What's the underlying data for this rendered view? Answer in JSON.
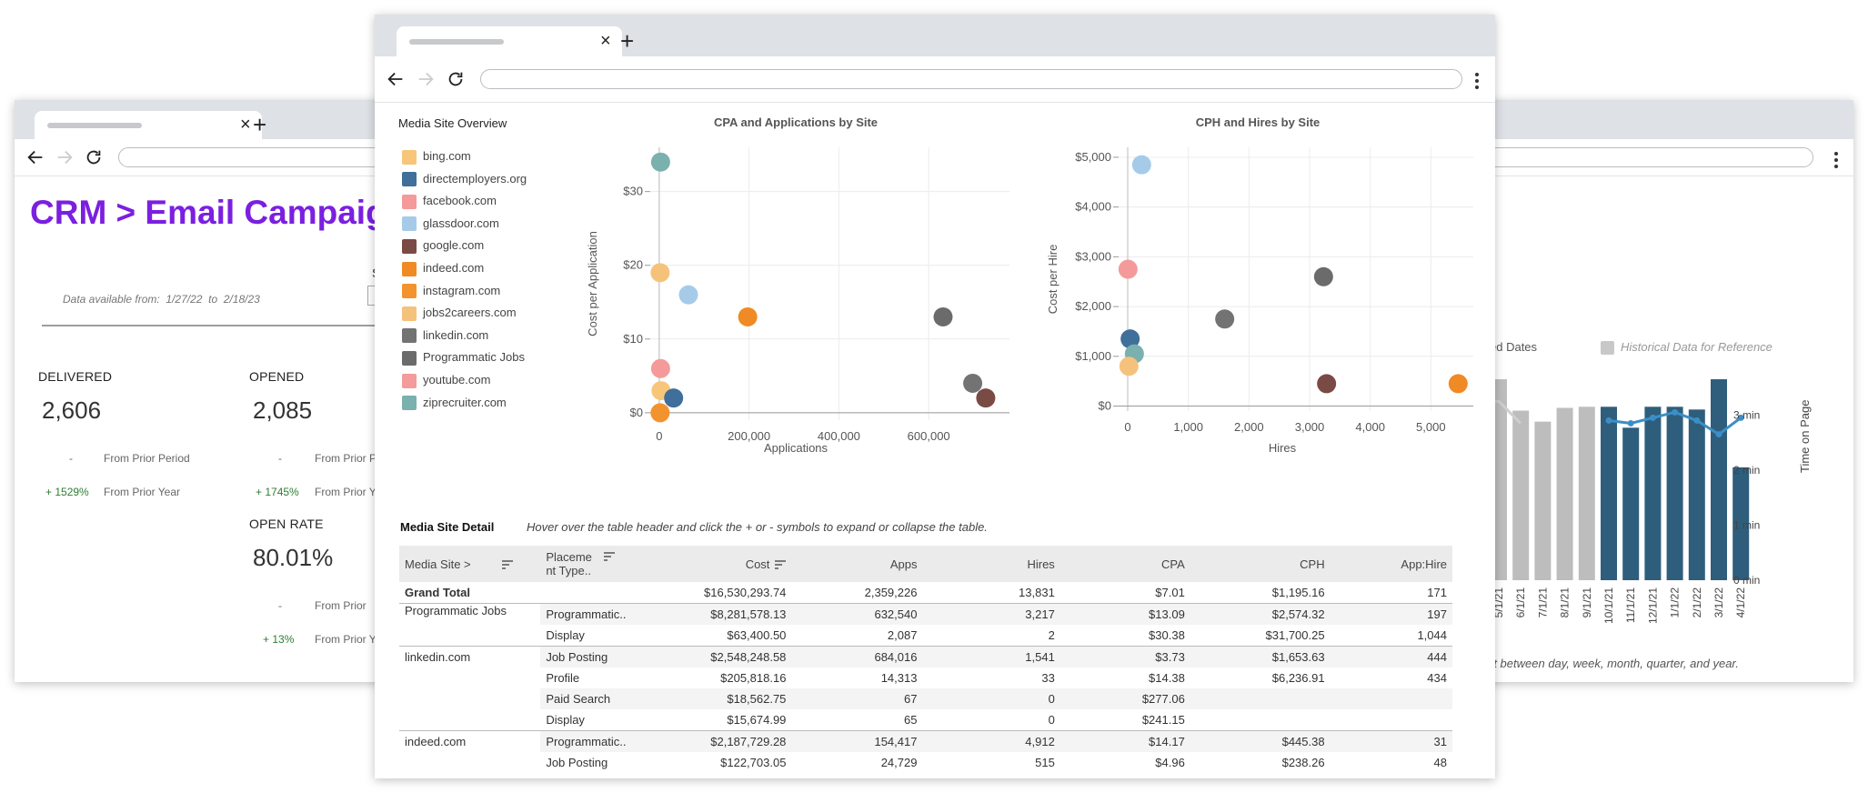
{
  "left_window": {
    "title": "CRM > Email Campaig",
    "data_range": {
      "prefix": "Data available from:",
      "from": "1/27/22",
      "to_word": "to",
      "to": "2/18/23"
    },
    "metrics": [
      {
        "label": "DELIVERED",
        "value": "2,606",
        "prior_period_change": "-",
        "prior_period_label": "From Prior Period",
        "prior_year_change": "+ 1529%",
        "prior_year_label": "From Prior Year"
      },
      {
        "label": "OPENED",
        "value": "2,085",
        "prior_period_change": "-",
        "prior_period_label": "From Prior P",
        "prior_year_change": "+ 1745%",
        "prior_year_label": "From Prior Y"
      },
      {
        "label": "OPEN RATE",
        "value": "80.01%",
        "prior_period_change": "-",
        "prior_period_label": "From Prior",
        "prior_year_change": "+ 13%",
        "prior_year_label": "From Prior Y"
      }
    ],
    "cut_letter": "S"
  },
  "right_window": {
    "legend": [
      {
        "label": "ed Dates",
        "color": "#cccccc"
      },
      {
        "label": "Historical Data for Reference",
        "color": "#c8c8c8"
      }
    ],
    "right_axis_title": "Time on Page",
    "right_axis_ticks": [
      "3 min",
      "2 min",
      "1 min",
      "0 min"
    ],
    "footnote": "rt between day, week, month, quarter, and year.",
    "chart_data": {
      "type": "bar",
      "categories": [
        "",
        "5/1/21",
        "6/1/21",
        "7/1/21",
        "8/1/21",
        "9/1/21",
        "10/1/21",
        "11/1/21",
        "12/1/21",
        "1/1/22",
        "2/1/22",
        "3/1/22",
        "4/1/22"
      ],
      "series": [
        {
          "values": [
            3.65,
            3.65,
            3.08,
            2.88,
            3.13,
            3.15,
            3.15,
            2.77,
            3.15,
            3.15,
            3.1,
            3.65,
            2.05
          ]
        },
        {
          "values": [
            null,
            null,
            null,
            null,
            null,
            null,
            2.9,
            2.85,
            2.95,
            3.05,
            2.9,
            2.65,
            2.95
          ]
        }
      ],
      "highlight_start_index": 6,
      "colors": {
        "historical": "#bdbdbd",
        "current": "#2e5e7c",
        "line": "#3b8fc6"
      },
      "ylim": [
        0,
        3.7
      ]
    }
  },
  "center_window": {
    "overview_title": "Media Site Overview",
    "sites": [
      {
        "name": "bing.com",
        "color": "#f7c67a"
      },
      {
        "name": "directemployers.org",
        "color": "#3f6f9a"
      },
      {
        "name": "facebook.com",
        "color": "#f49a9a"
      },
      {
        "name": "glassdoor.com",
        "color": "#a5cbe9"
      },
      {
        "name": "google.com",
        "color": "#7a4a44"
      },
      {
        "name": "indeed.com",
        "color": "#f08a24"
      },
      {
        "name": "instagram.com",
        "color": "#f3932e"
      },
      {
        "name": "jobs2careers.com",
        "color": "#f5c27c"
      },
      {
        "name": "linkedin.com",
        "color": "#737373"
      },
      {
        "name": "Programmatic Jobs",
        "color": "#6b6b6b"
      },
      {
        "name": "youtube.com",
        "color": "#f49b9b"
      },
      {
        "name": "ziprecruiter.com",
        "color": "#7ab0ae"
      }
    ],
    "detail_title": "Media Site Detail",
    "detail_hint": "Hover over the table header and click the + or - symbols to expand or collapse the table.",
    "table": {
      "headers": [
        "Media Site >",
        "Placeme nt Type..",
        "Cost",
        "Apps",
        "Hires",
        "CPA",
        "CPH",
        "App:Hire"
      ],
      "rows": [
        {
          "site": "Grand Total",
          "type": "",
          "cost": "$16,530,293.74",
          "apps": "2,359,226",
          "hires": "13,831",
          "cpa": "$7.01",
          "cph": "$1,195.16",
          "ratio": "171"
        },
        {
          "site": "Programmatic Jobs",
          "type": "Programmatic..",
          "cost": "$8,281,578.13",
          "apps": "632,540",
          "hires": "3,217",
          "cpa": "$13.09",
          "cph": "$2,574.32",
          "ratio": "197"
        },
        {
          "site": "",
          "type": "Display",
          "cost": "$63,400.50",
          "apps": "2,087",
          "hires": "2",
          "cpa": "$30.38",
          "cph": "$31,700.25",
          "ratio": "1,044"
        },
        {
          "site": "linkedin.com",
          "type": "Job Posting",
          "cost": "$2,548,248.58",
          "apps": "684,016",
          "hires": "1,541",
          "cpa": "$3.73",
          "cph": "$1,653.63",
          "ratio": "444"
        },
        {
          "site": "",
          "type": "Profile",
          "cost": "$205,818.16",
          "apps": "14,313",
          "hires": "33",
          "cpa": "$14.38",
          "cph": "$6,236.91",
          "ratio": "434"
        },
        {
          "site": "",
          "type": "Paid Search",
          "cost": "$18,562.75",
          "apps": "67",
          "hires": "0",
          "cpa": "$277.06",
          "cph": "",
          "ratio": ""
        },
        {
          "site": "",
          "type": "Display",
          "cost": "$15,674.99",
          "apps": "65",
          "hires": "0",
          "cpa": "$241.15",
          "cph": "",
          "ratio": ""
        },
        {
          "site": "indeed.com",
          "type": "Programmatic..",
          "cost": "$2,187,729.28",
          "apps": "154,417",
          "hires": "4,912",
          "cpa": "$14.17",
          "cph": "$445.38",
          "ratio": "31"
        },
        {
          "site": "",
          "type": "Job Posting",
          "cost": "$122,703.05",
          "apps": "24,729",
          "hires": "515",
          "cpa": "$4.96",
          "cph": "$238.26",
          "ratio": "48"
        }
      ]
    },
    "chart_data": [
      {
        "type": "scatter",
        "title": "CPA and Applications by Site",
        "xlabel": "Applications",
        "ylabel": "Cost per Application",
        "xlim": [
          -20000,
          790000
        ],
        "ylim": [
          -1,
          36
        ],
        "xticks": [
          0,
          200000,
          400000,
          600000
        ],
        "xtick_labels": [
          "0",
          "200,000",
          "400,000",
          "600,000"
        ],
        "yticks": [
          0,
          10,
          20,
          30
        ],
        "ytick_labels": [
          "$0",
          "$10",
          "$20",
          "$30"
        ],
        "points": [
          {
            "x": 3000,
            "y": 34,
            "color": "#7ab0ae"
          },
          {
            "x": 2000,
            "y": 19,
            "color": "#f5c27c"
          },
          {
            "x": 65000,
            "y": 16,
            "color": "#a5cbe9"
          },
          {
            "x": 197000,
            "y": 13,
            "color": "#f08a24"
          },
          {
            "x": 632000,
            "y": 13,
            "color": "#6b6b6b"
          },
          {
            "x": 3000,
            "y": 6,
            "color": "#f49a9a"
          },
          {
            "x": 4000,
            "y": 3,
            "color": "#f7c67a"
          },
          {
            "x": 32000,
            "y": 2,
            "color": "#3f6f9a"
          },
          {
            "x": 2000,
            "y": 0,
            "color": "#f3932e"
          },
          {
            "x": 698000,
            "y": 4,
            "color": "#737373"
          },
          {
            "x": 727000,
            "y": 2,
            "color": "#7a4a44"
          }
        ]
      },
      {
        "type": "scatter",
        "title": "CPH and Hires by Site",
        "xlabel": "Hires",
        "ylabel": "Cost per Hire",
        "xlim": [
          -150,
          5700
        ],
        "ylim": [
          -100,
          5200
        ],
        "xticks": [
          0,
          1000,
          2000,
          3000,
          4000,
          5000
        ],
        "xtick_labels": [
          "0",
          "1,000",
          "2,000",
          "3,000",
          "4,000",
          "5,000"
        ],
        "yticks": [
          0,
          1000,
          2000,
          3000,
          4000,
          5000
        ],
        "ytick_labels": [
          "$0",
          "$1,000",
          "$2,000",
          "$3,000",
          "$4,000",
          "$5,000"
        ],
        "points": [
          {
            "x": 230,
            "y": 4850,
            "color": "#a5cbe9"
          },
          {
            "x": 5,
            "y": 2750,
            "color": "#f49a9a"
          },
          {
            "x": 3230,
            "y": 2600,
            "color": "#6b6b6b"
          },
          {
            "x": 1600,
            "y": 1750,
            "color": "#737373"
          },
          {
            "x": 40,
            "y": 1350,
            "color": "#3f6f9a"
          },
          {
            "x": 110,
            "y": 1050,
            "color": "#7ab0ae"
          },
          {
            "x": 20,
            "y": 800,
            "color": "#f5c27c"
          },
          {
            "x": 3280,
            "y": 450,
            "color": "#7a4a44"
          },
          {
            "x": 5450,
            "y": 450,
            "color": "#f08a24"
          }
        ]
      }
    ]
  }
}
